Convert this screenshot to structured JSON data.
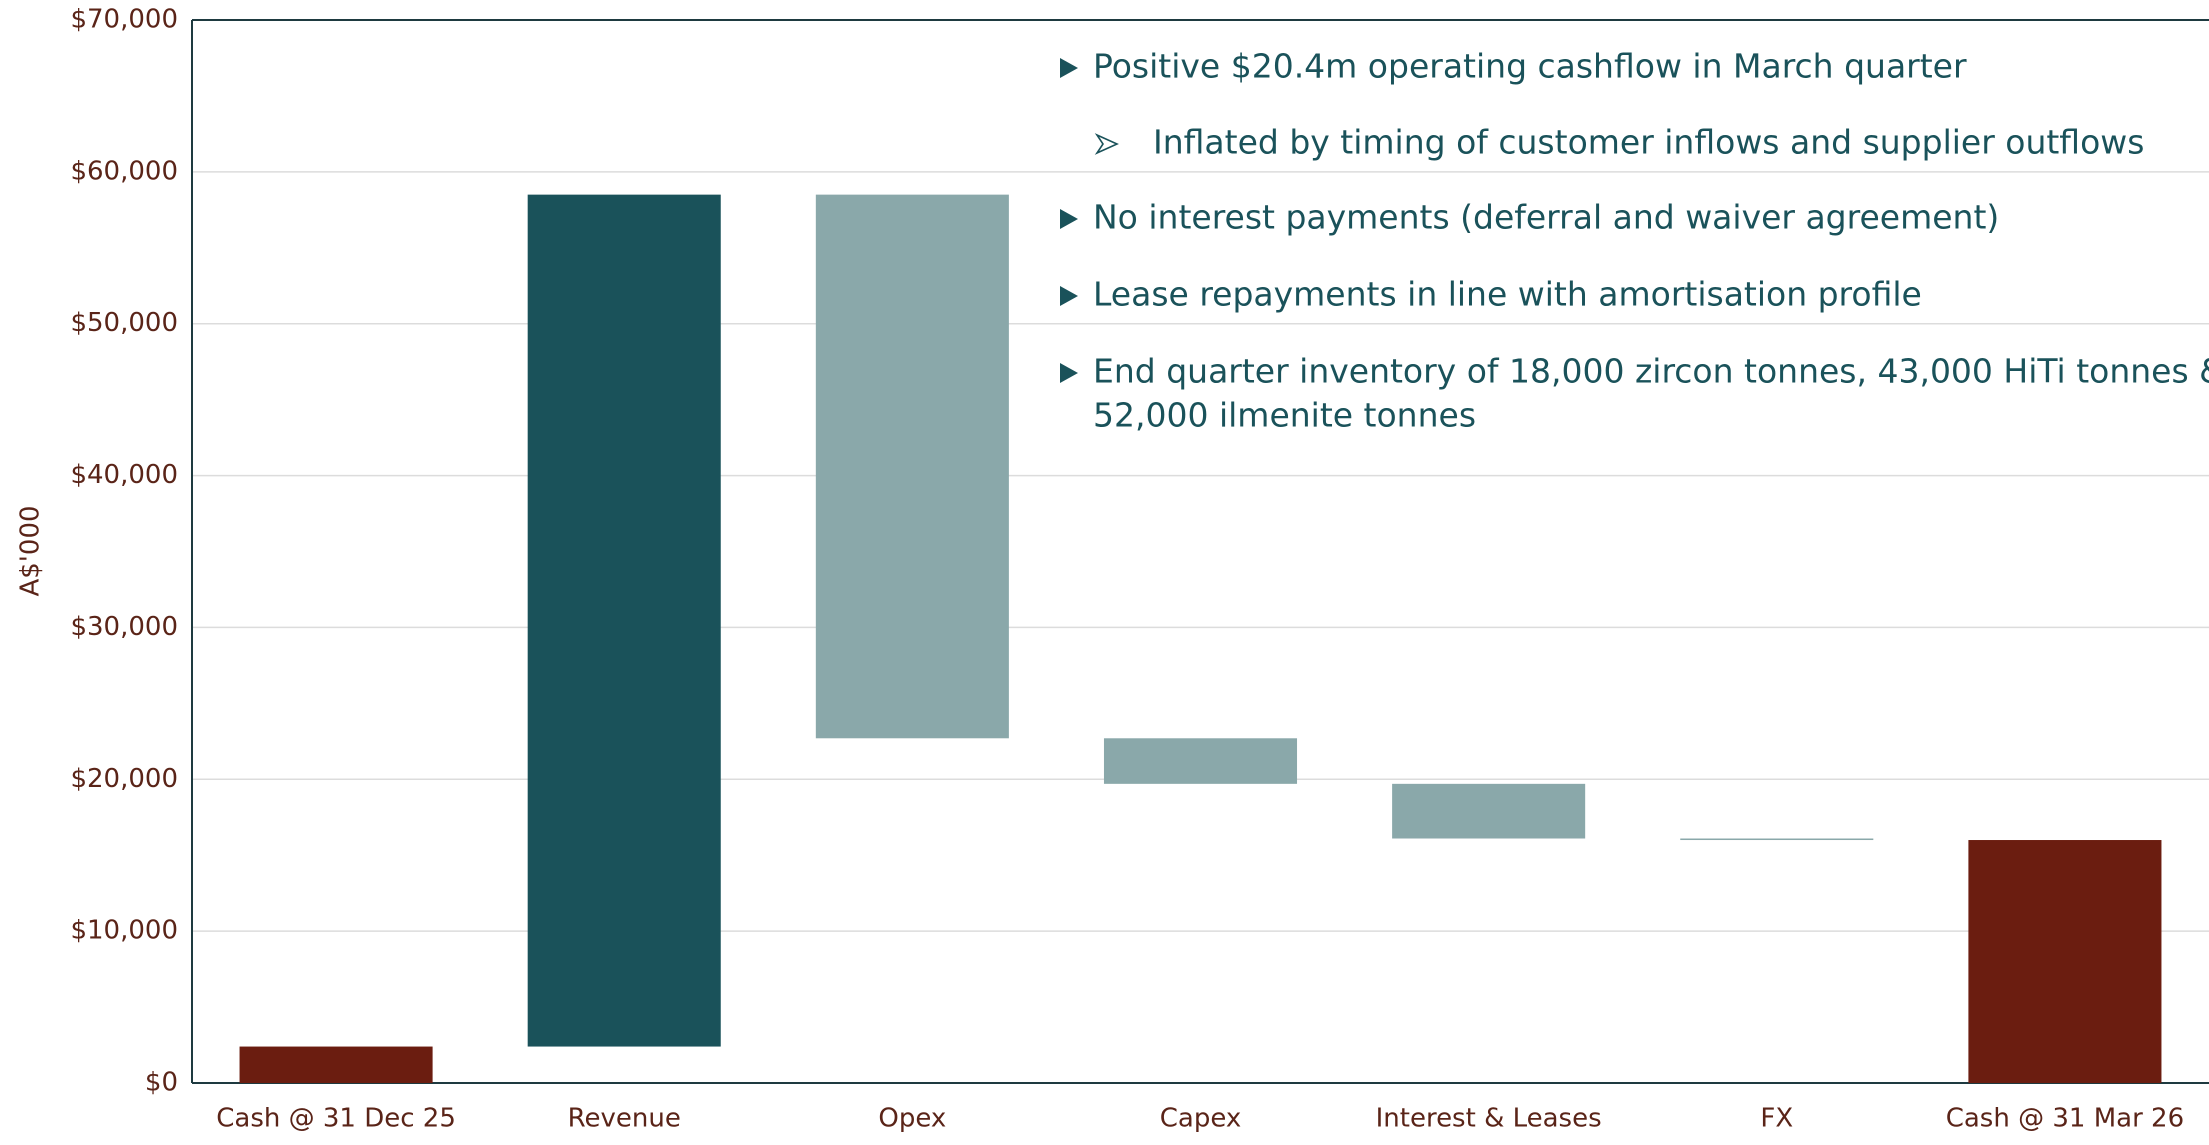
{
  "chart_data": {
    "type": "waterfall",
    "y_label": "A$'000",
    "categories": [
      "Cash @ 31 Dec 25",
      "Revenue",
      "Opex",
      "Capex",
      "Interest & Leases",
      "FX",
      "Cash @ 31 Mar 26"
    ],
    "values": [
      2400,
      56100,
      -35800,
      -3000,
      -3600,
      -100,
      16000
    ],
    "is_total": [
      true,
      false,
      false,
      false,
      false,
      false,
      true
    ],
    "colors": [
      "#6b1d10",
      "#1a525a",
      "#8aa8aa",
      "#8aa8aa",
      "#8aa8aa",
      "#8aa8aa",
      "#6b1d10"
    ],
    "ylim": [
      0,
      70000
    ],
    "yticks": [
      {
        "value": 0,
        "label": "$0"
      },
      {
        "value": 10000,
        "label": "$10,000"
      },
      {
        "value": 20000,
        "label": "$20,000"
      },
      {
        "value": 30000,
        "label": "$30,000"
      },
      {
        "value": 40000,
        "label": "$40,000"
      },
      {
        "value": 50000,
        "label": "$50,000"
      },
      {
        "value": 60000,
        "label": "$60,000"
      },
      {
        "value": 70000,
        "label": "$70,000"
      }
    ],
    "grid": true,
    "annotations": [
      {
        "level": 1,
        "lines": [
          "Positive $20.4m operating cashflow in March quarter"
        ]
      },
      {
        "level": 2,
        "lines": [
          "Inflated by timing of customer inflows and supplier outflows"
        ]
      },
      {
        "level": 1,
        "lines": [
          "No interest payments (deferral and waiver agreement)"
        ]
      },
      {
        "level": 1,
        "lines": [
          "Lease repayments in line with amortisation profile"
        ]
      },
      {
        "level": 1,
        "lines": [
          "End quarter inventory of 18,000 zircon tonnes, 43,000 HiTi tonnes &",
          "52,000 ilmenite tonnes"
        ]
      }
    ]
  }
}
